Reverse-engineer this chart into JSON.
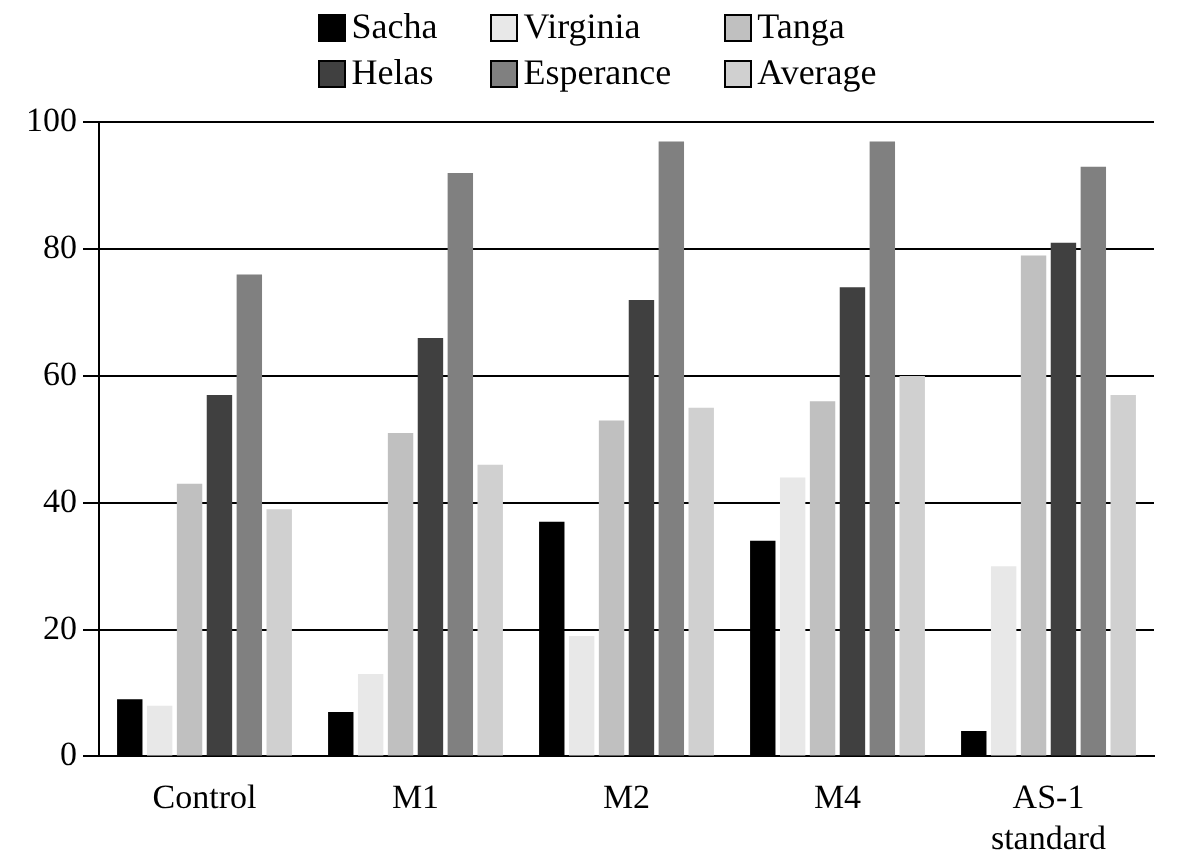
{
  "chart_data": {
    "type": "bar",
    "categories": [
      "Control",
      "M1",
      "M2",
      "M4",
      "AS-1 standard"
    ],
    "series": [
      {
        "name": "Sacha",
        "color": "#000000",
        "values": [
          9,
          7,
          37,
          34,
          4
        ]
      },
      {
        "name": "Virginia",
        "color": "#e8e8e8",
        "values": [
          8,
          13,
          19,
          44,
          30
        ]
      },
      {
        "name": "Tanga",
        "color": "#c0c0c0",
        "values": [
          43,
          51,
          53,
          56,
          79
        ]
      },
      {
        "name": "Helas",
        "color": "#404040",
        "values": [
          57,
          66,
          72,
          74,
          81
        ]
      },
      {
        "name": "Esperance",
        "color": "#808080",
        "values": [
          76,
          92,
          97,
          97,
          93
        ]
      },
      {
        "name": "Average",
        "color": "#d0d0d0",
        "values": [
          39,
          46,
          55,
          60,
          57
        ]
      }
    ],
    "ylim": [
      0,
      100
    ],
    "yticks": [
      0,
      20,
      40,
      60,
      80,
      100
    ],
    "grid": "y",
    "legend": "top"
  }
}
